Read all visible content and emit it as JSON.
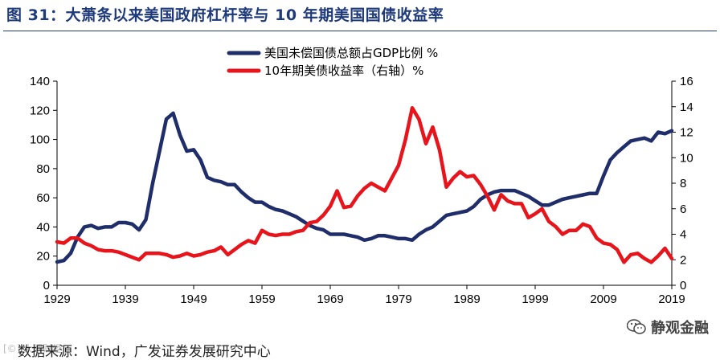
{
  "header": {
    "title": "图 31：大萧条以来美国政府杠杆率与 10 年期美国国债收益率"
  },
  "footer": {
    "source": "数据来源：Wind，广发证券发展研究中心",
    "source_watermark": "[©] 大眼财经"
  },
  "watermark": {
    "text": "静观金融",
    "icon": "wechat-icon"
  },
  "colors": {
    "debt": "#1f2e6b",
    "yield": "#e8141b",
    "title": "#1f3a7a"
  },
  "chart_data": {
    "type": "line",
    "title": "",
    "xlabel": "",
    "ylabel": "",
    "y2label": "",
    "xlim": [
      1929,
      2019
    ],
    "ylim": [
      0,
      140
    ],
    "y2lim": [
      0,
      16
    ],
    "x_ticks": [
      "1929",
      "1939",
      "1949",
      "1959",
      "1969",
      "1979",
      "1989",
      "1999",
      "2009",
      "2019"
    ],
    "y_ticks": [
      "0",
      "20",
      "40",
      "60",
      "80",
      "100",
      "120",
      "140"
    ],
    "y2_ticks": [
      "0",
      "2",
      "4",
      "6",
      "8",
      "10",
      "12",
      "14",
      "16"
    ],
    "series": [
      {
        "name": "美国未偿国债总额占GDP比例 %",
        "axis": "left",
        "color": "#1f2e6b",
        "x": [
          1929,
          1930,
          1931,
          1932,
          1933,
          1934,
          1935,
          1936,
          1937,
          1938,
          1939,
          1940,
          1941,
          1942,
          1943,
          1944,
          1945,
          1946,
          1947,
          1948,
          1949,
          1950,
          1951,
          1952,
          1953,
          1954,
          1955,
          1956,
          1957,
          1958,
          1959,
          1960,
          1961,
          1962,
          1963,
          1964,
          1965,
          1966,
          1967,
          1968,
          1969,
          1970,
          1971,
          1972,
          1973,
          1974,
          1975,
          1976,
          1977,
          1978,
          1979,
          1980,
          1981,
          1982,
          1983,
          1984,
          1985,
          1986,
          1987,
          1988,
          1989,
          1990,
          1991,
          1992,
          1993,
          1994,
          1995,
          1996,
          1997,
          1998,
          1999,
          2000,
          2001,
          2002,
          2003,
          2004,
          2005,
          2006,
          2007,
          2008,
          2009,
          2010,
          2011,
          2012,
          2013,
          2014,
          2015,
          2016,
          2017,
          2018,
          2019
        ],
        "values": [
          16,
          17,
          22,
          33,
          40,
          41,
          39,
          40,
          40,
          43,
          43,
          42,
          38,
          45,
          70,
          92,
          114,
          118,
          103,
          92,
          93,
          86,
          74,
          72,
          71,
          69,
          69,
          64,
          60,
          57,
          57,
          54,
          52,
          51,
          49,
          47,
          44,
          41,
          39,
          38,
          35,
          35,
          35,
          34,
          33,
          31,
          32,
          34,
          34,
          33,
          32,
          32,
          31,
          35,
          38,
          40,
          44,
          48,
          49,
          50,
          51,
          54,
          59,
          62,
          64,
          65,
          65,
          65,
          63,
          61,
          58,
          55,
          55,
          57,
          59,
          60,
          61,
          62,
          63,
          63,
          75,
          86,
          91,
          95,
          99,
          100,
          101,
          99,
          105,
          104,
          106
        ]
      },
      {
        "name": "10年期美债收益率（右轴）%",
        "axis": "right",
        "color": "#e8141b",
        "x": [
          1929,
          1930,
          1931,
          1932,
          1933,
          1934,
          1935,
          1936,
          1937,
          1938,
          1939,
          1940,
          1941,
          1942,
          1943,
          1944,
          1945,
          1946,
          1947,
          1948,
          1949,
          1950,
          1951,
          1952,
          1953,
          1954,
          1955,
          1956,
          1957,
          1958,
          1959,
          1960,
          1961,
          1962,
          1963,
          1964,
          1965,
          1966,
          1967,
          1968,
          1969,
          1970,
          1971,
          1972,
          1973,
          1974,
          1975,
          1976,
          1977,
          1978,
          1979,
          1980,
          1981,
          1982,
          1983,
          1984,
          1985,
          1986,
          1987,
          1988,
          1989,
          1990,
          1991,
          1992,
          1993,
          1994,
          1995,
          1996,
          1997,
          1998,
          1999,
          2000,
          2001,
          2002,
          2003,
          2004,
          2005,
          2006,
          2007,
          2008,
          2009,
          2010,
          2011,
          2012,
          2013,
          2014,
          2015,
          2016,
          2017,
          2018,
          2019
        ],
        "values": [
          3.4,
          3.3,
          3.7,
          3.7,
          3.3,
          3.1,
          2.8,
          2.7,
          2.7,
          2.6,
          2.4,
          2.2,
          2.0,
          2.5,
          2.5,
          2.5,
          2.4,
          2.2,
          2.3,
          2.5,
          2.3,
          2.4,
          2.6,
          2.7,
          3.0,
          2.4,
          2.8,
          3.2,
          3.5,
          3.3,
          4.3,
          4.0,
          3.9,
          4.0,
          4.0,
          4.2,
          4.3,
          4.9,
          5.0,
          5.5,
          6.2,
          7.4,
          6.1,
          6.2,
          7.0,
          7.6,
          8.0,
          7.7,
          7.4,
          8.4,
          9.4,
          11.4,
          13.9,
          13.0,
          11.1,
          12.4,
          10.6,
          7.7,
          8.4,
          8.9,
          8.5,
          8.6,
          7.9,
          7.0,
          5.9,
          7.1,
          6.6,
          6.4,
          6.4,
          5.3,
          5.6,
          6.0,
          5.0,
          4.6,
          4.0,
          4.3,
          4.3,
          4.8,
          4.6,
          3.7,
          3.3,
          3.2,
          2.8,
          1.8,
          2.4,
          2.5,
          2.1,
          1.8,
          2.3,
          2.9,
          2.1
        ]
      }
    ]
  }
}
